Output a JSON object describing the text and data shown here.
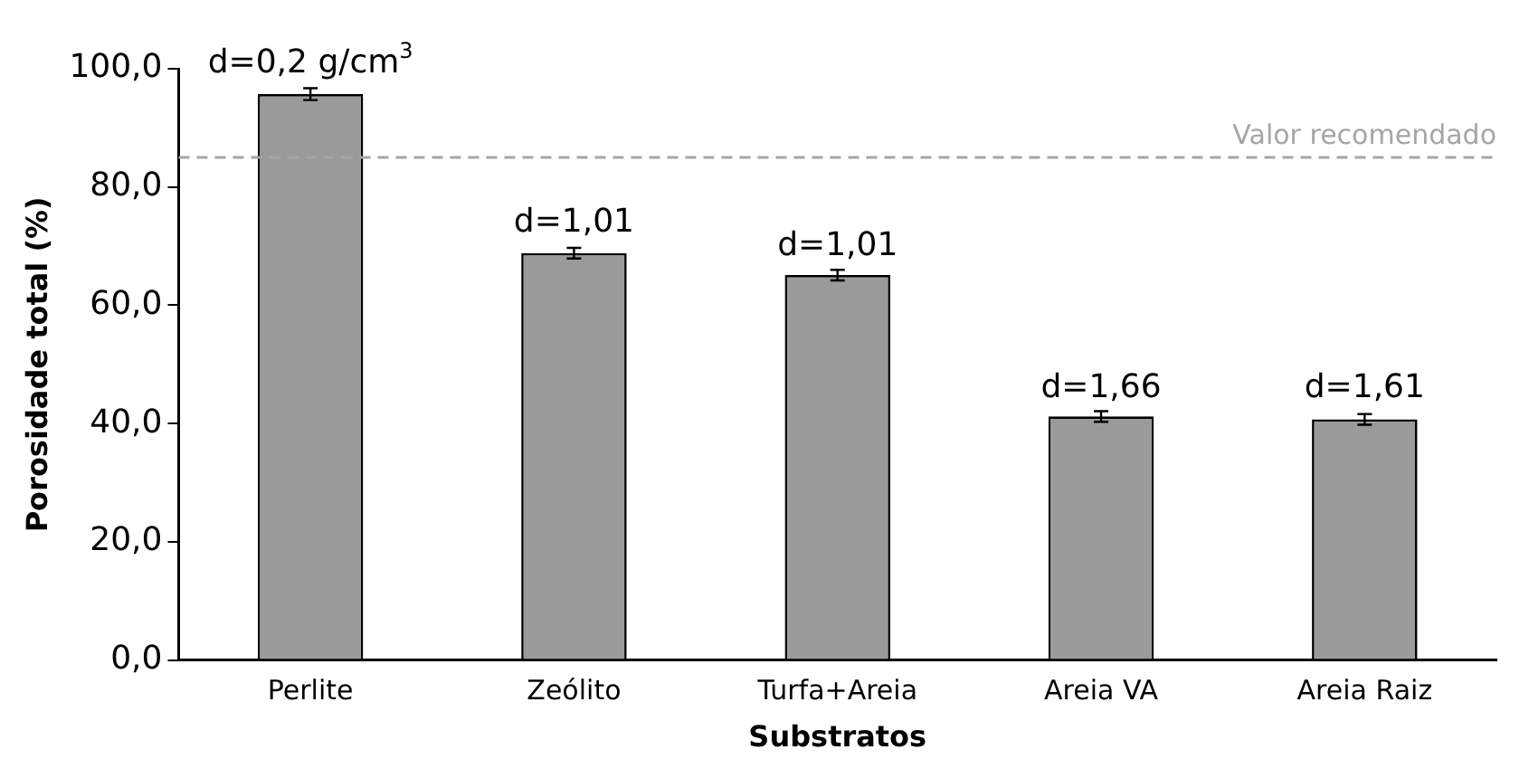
{
  "chart_data": {
    "type": "bar",
    "xlabel": "Substratos",
    "ylabel": "Porosidade total (%)",
    "categories": [
      "Perlite",
      "Zeólito",
      "Turfa+Areia",
      "Areia VA",
      "Areia Raiz"
    ],
    "values": [
      95.7,
      68.8,
      65.1,
      41.2,
      40.7
    ],
    "color": "#9a9a9a",
    "errors": [
      1.0,
      0.9,
      0.9,
      0.9,
      0.9
    ],
    "ylim": [
      0,
      100
    ],
    "yticks": [
      {
        "value": 0,
        "label": "0,0"
      },
      {
        "value": 20,
        "label": "20,0"
      },
      {
        "value": 40,
        "label": "40,0"
      },
      {
        "value": 60,
        "label": "60,0"
      },
      {
        "value": 80,
        "label": "80,0"
      },
      {
        "value": 100,
        "label": "100,0"
      }
    ],
    "ref_lines": [
      {
        "axis": "y",
        "value": 85,
        "label": "Valor recomendado",
        "color": "#a6a6a6",
        "line_style": "dashed"
      }
    ],
    "annotations": [
      {
        "text": "d=0,2 g/cm$^{3}$",
        "x": "Perlite",
        "y": 97
      },
      {
        "text": "d=1,01",
        "x": "Zeólito",
        "y": 70
      },
      {
        "text": "d=1,01",
        "x": "Turfa+Areia",
        "y": 66
      },
      {
        "text": "d=1,66",
        "x": "Areia VA",
        "y": 42
      },
      {
        "text": "d=1,61",
        "x": "Areia Raiz",
        "y": 42
      }
    ],
    "grid": false,
    "legend": false
  }
}
